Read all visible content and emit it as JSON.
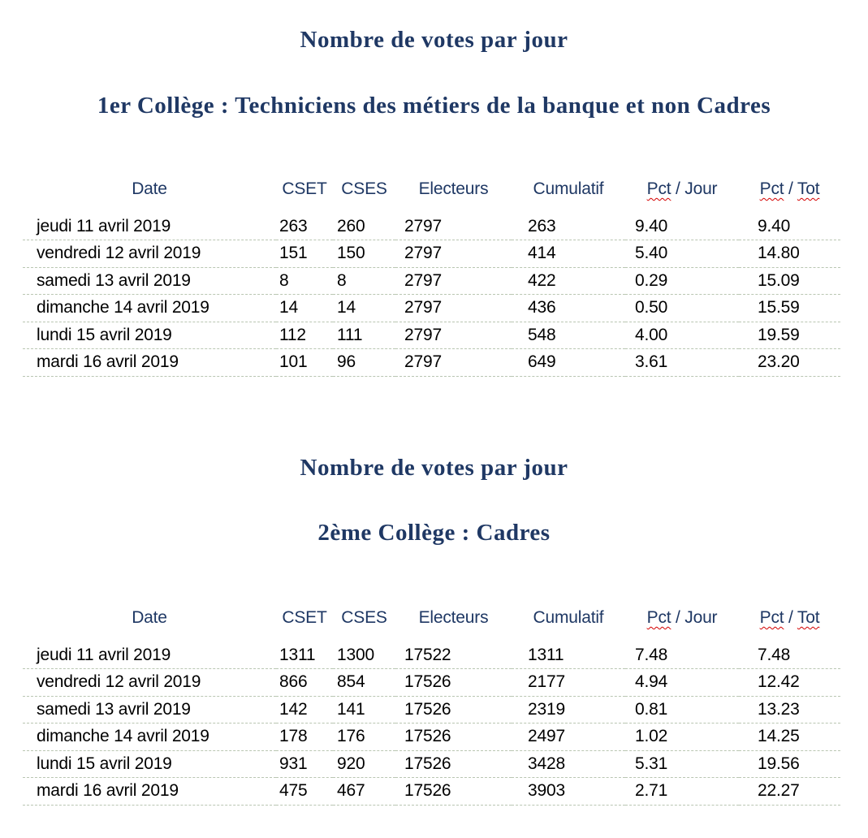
{
  "colors": {
    "title_and_header": "#1f3864",
    "body_text": "#000000",
    "row_gridline": "#b9c6b2",
    "spellcheck_underline": "#d40000",
    "background": "#ffffff"
  },
  "sections": [
    {
      "title": "Nombre de votes par jour",
      "subtitle": "1er Collège : Techniciens des métiers de la banque et non Cadres",
      "table": {
        "columns": [
          {
            "id": "date",
            "parts": [
              {
                "text": "Date"
              }
            ]
          },
          {
            "id": "cset",
            "parts": [
              {
                "text": "CSET"
              }
            ]
          },
          {
            "id": "cses",
            "parts": [
              {
                "text": "CSES"
              }
            ]
          },
          {
            "id": "electeurs",
            "parts": [
              {
                "text": "Electeurs"
              }
            ]
          },
          {
            "id": "cumulatif",
            "parts": [
              {
                "text": "Cumulatif"
              }
            ]
          },
          {
            "id": "pct-jour",
            "parts": [
              {
                "text": "Pct",
                "misspelled": true
              },
              {
                "text": " / Jour"
              }
            ]
          },
          {
            "id": "pct-tot",
            "parts": [
              {
                "text": "Pct",
                "misspelled": true
              },
              {
                "text": " / "
              },
              {
                "text": "Tot",
                "misspelled": true
              }
            ]
          }
        ],
        "rows": [
          [
            "jeudi 11 avril 2019",
            "263",
            "260",
            "2797",
            "263",
            "9.40",
            "9.40"
          ],
          [
            "vendredi 12 avril 2019",
            "151",
            "150",
            "2797",
            "414",
            "5.40",
            "14.80"
          ],
          [
            "samedi 13 avril 2019",
            "8",
            "8",
            "2797",
            "422",
            "0.29",
            "15.09"
          ],
          [
            "dimanche 14 avril 2019",
            "14",
            "14",
            "2797",
            "436",
            "0.50",
            "15.59"
          ],
          [
            "lundi 15 avril 2019",
            "112",
            "111",
            "2797",
            "548",
            "4.00",
            "19.59"
          ],
          [
            "mardi 16 avril 2019",
            "101",
            "96",
            "2797",
            "649",
            "3.61",
            "23.20"
          ]
        ]
      }
    },
    {
      "title": "Nombre de votes par jour",
      "subtitle": "2ème Collège : Cadres",
      "table": {
        "columns": [
          {
            "id": "date",
            "parts": [
              {
                "text": "Date"
              }
            ]
          },
          {
            "id": "cset",
            "parts": [
              {
                "text": "CSET"
              }
            ]
          },
          {
            "id": "cses",
            "parts": [
              {
                "text": "CSES"
              }
            ]
          },
          {
            "id": "electeurs",
            "parts": [
              {
                "text": "Electeurs"
              }
            ]
          },
          {
            "id": "cumulatif",
            "parts": [
              {
                "text": "Cumulatif"
              }
            ]
          },
          {
            "id": "pct-jour",
            "parts": [
              {
                "text": "Pct",
                "misspelled": true
              },
              {
                "text": " / Jour"
              }
            ]
          },
          {
            "id": "pct-tot",
            "parts": [
              {
                "text": "Pct",
                "misspelled": true
              },
              {
                "text": " / "
              },
              {
                "text": "Tot",
                "misspelled": true
              }
            ]
          }
        ],
        "rows": [
          [
            "jeudi 11 avril 2019",
            "1311",
            "1300",
            "17522",
            "1311",
            "7.48",
            "7.48"
          ],
          [
            "vendredi 12 avril 2019",
            "866",
            "854",
            "17526",
            "2177",
            "4.94",
            "12.42"
          ],
          [
            "samedi 13 avril 2019",
            "142",
            "141",
            "17526",
            "2319",
            "0.81",
            "13.23"
          ],
          [
            "dimanche 14 avril 2019",
            "178",
            "176",
            "17526",
            "2497",
            "1.02",
            "14.25"
          ],
          [
            "lundi 15 avril 2019",
            "931",
            "920",
            "17526",
            "3428",
            "5.31",
            "19.56"
          ],
          [
            "mardi 16 avril 2019",
            "475",
            "467",
            "17526",
            "3903",
            "2.71",
            "22.27"
          ]
        ]
      }
    }
  ]
}
